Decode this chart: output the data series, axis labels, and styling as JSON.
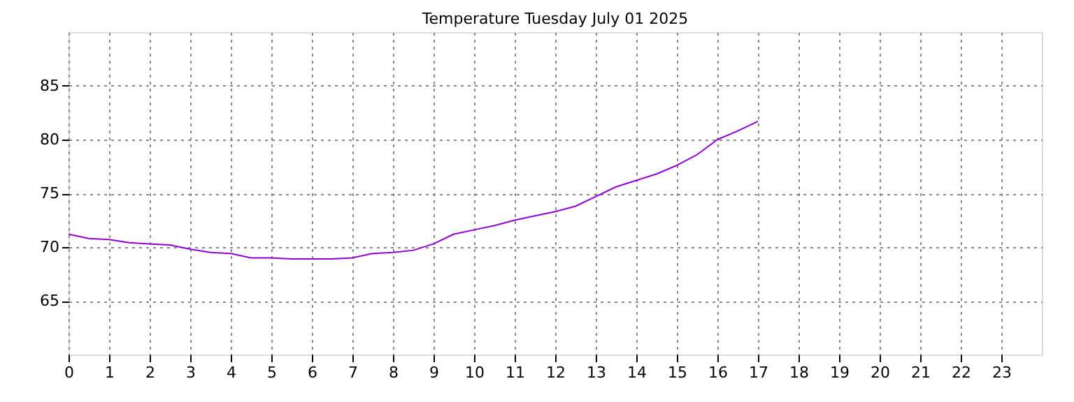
{
  "chart_data": {
    "type": "line",
    "title": "Temperature Tuesday July 01 2025",
    "x": [
      0,
      0.5,
      1,
      1.5,
      2,
      2.5,
      3,
      3.5,
      4,
      4.5,
      5,
      5.5,
      6,
      6.5,
      7,
      7.5,
      8,
      8.5,
      9,
      9.5,
      10,
      10.5,
      11,
      11.5,
      12,
      12.5,
      13,
      13.5,
      14,
      14.5,
      15,
      15.5,
      16,
      16.5,
      17
    ],
    "series": [
      {
        "color": "#9400d3",
        "values": [
          71.2,
          70.8,
          70.7,
          70.4,
          70.3,
          70.2,
          69.8,
          69.5,
          69.4,
          69.0,
          69.0,
          68.9,
          68.9,
          68.9,
          69.0,
          69.4,
          69.5,
          69.7,
          70.3,
          71.2,
          71.6,
          72.0,
          72.5,
          72.9,
          73.3,
          73.8,
          74.7,
          75.6,
          76.2,
          76.8,
          77.6,
          78.6,
          80.0,
          80.8,
          81.7
        ]
      }
    ],
    "xlim": [
      0,
      24
    ],
    "xticks": [
      0,
      1,
      2,
      3,
      4,
      5,
      6,
      7,
      8,
      9,
      10,
      11,
      12,
      13,
      14,
      15,
      16,
      17,
      18,
      19,
      20,
      21,
      22,
      23
    ],
    "ylim": [
      60,
      90
    ],
    "yticks": [
      65,
      70,
      75,
      80,
      85
    ],
    "grid": true,
    "marker": "none",
    "line_style": "solid"
  }
}
